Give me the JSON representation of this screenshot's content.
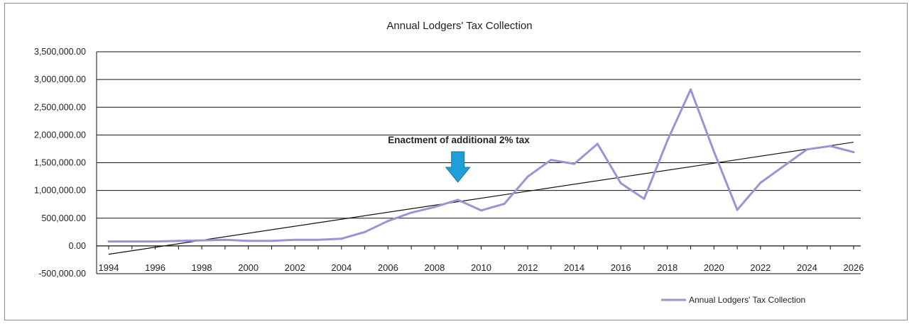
{
  "chart_data": {
    "type": "line",
    "title": "Annual Lodgers' Tax Collection",
    "xlabel": "",
    "ylabel": "",
    "xlim": [
      1994,
      2026
    ],
    "ylim": [
      -500000,
      3500000
    ],
    "y_ticks": [
      "3,500,000.00",
      "3,000,000.00",
      "2,500,000.00",
      "2,000,000.00",
      "1,500,000.00",
      "1,000,000.00",
      "500,000.00",
      "0.00",
      "-500,000.00"
    ],
    "y_tick_values": [
      3500000,
      3000000,
      2500000,
      2000000,
      1500000,
      1000000,
      500000,
      0,
      -500000
    ],
    "x_ticks": [
      "1994",
      "1996",
      "1998",
      "2000",
      "2002",
      "2004",
      "2006",
      "2008",
      "2010",
      "2012",
      "2014",
      "2016",
      "2018",
      "2020",
      "2022",
      "2024",
      "2026"
    ],
    "x_tick_values": [
      1994,
      1996,
      1998,
      2000,
      2002,
      2004,
      2006,
      2008,
      2010,
      2012,
      2014,
      2016,
      2018,
      2020,
      2022,
      2024,
      2026
    ],
    "grid": "horizontal",
    "legend_position": "bottom-right",
    "series": [
      {
        "name": "Annual Lodgers' Tax Collection",
        "color": "#a28fd6",
        "x": [
          1994,
          1995,
          1996,
          1997,
          1998,
          1999,
          2000,
          2001,
          2002,
          2003,
          2004,
          2005,
          2006,
          2007,
          2008,
          2009,
          2010,
          2011,
          2012,
          2013,
          2014,
          2015,
          2016,
          2017,
          2018,
          2019,
          2020,
          2021,
          2022,
          2023,
          2024,
          2025,
          2026
        ],
        "y": [
          80000,
          80000,
          80000,
          90000,
          100000,
          110000,
          90000,
          90000,
          110000,
          110000,
          130000,
          250000,
          450000,
          600000,
          700000,
          830000,
          640000,
          760000,
          1250000,
          1550000,
          1480000,
          1840000,
          1130000,
          850000,
          1900000,
          2820000,
          1700000,
          650000,
          1140000,
          1440000,
          1740000,
          1800000,
          1690000
        ]
      }
    ],
    "trendline": {
      "color": "#111111",
      "x": [
        1994,
        2026
      ],
      "y": [
        -150000,
        1870000
      ]
    },
    "annotation": {
      "text": "Enactment of additional 2% tax",
      "x": 2009,
      "arrow_color": "#1e9fd8"
    }
  }
}
